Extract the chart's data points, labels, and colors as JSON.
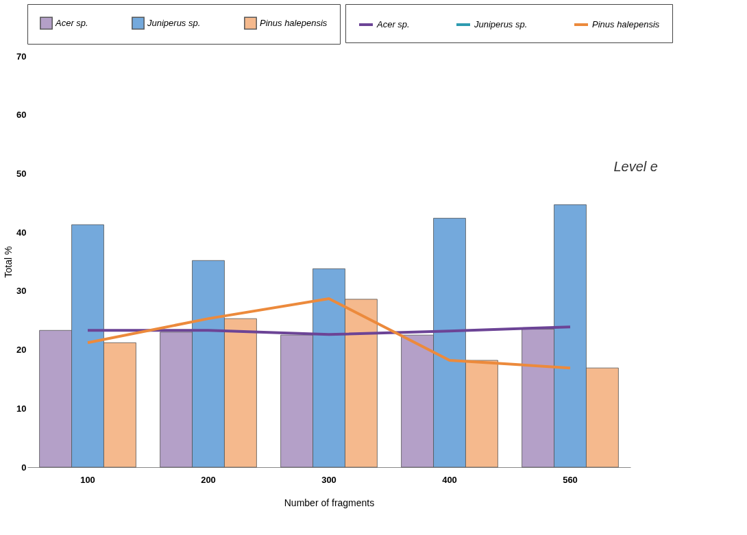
{
  "chart_data": {
    "type": "bar",
    "xlabel": "Number of fragments",
    "ylabel": "Total %",
    "categories": [
      "100",
      "200",
      "300",
      "400",
      "560"
    ],
    "series": [
      {
        "name": "Acer sp.",
        "color": "#b4a0c8",
        "values": [
          23.3,
          23,
          22.5,
          22.5,
          23.5
        ]
      },
      {
        "name": "Juniperus sp.",
        "color": "#74a9dc",
        "values": [
          41.3,
          35.2,
          33.8,
          42.4,
          44.7
        ]
      },
      {
        "name": "Pinus halepensis",
        "color": "#f5b98d",
        "values": [
          21.2,
          25.3,
          28.6,
          18.2,
          16.9
        ]
      },
      {
        "name": "Acer sp.",
        "type": "line",
        "color": "#6c4496",
        "values": [
          23.3,
          23.3,
          22.6,
          23.2,
          23.9
        ]
      },
      {
        "name": "Juniperus sp.",
        "type": "line",
        "color": "#2e9bb0",
        "values": [
          null,
          null,
          null,
          null,
          null
        ]
      },
      {
        "name": "Pinus halepensis",
        "type": "line",
        "color": "#ec8a3c",
        "values": [
          21.2,
          25.3,
          28.7,
          18.2,
          16.9
        ]
      }
    ],
    "ylim": [
      0,
      70
    ],
    "yticks": [
      0,
      10,
      20,
      30,
      40,
      50,
      60,
      70
    ],
    "annotations": [
      "Level e"
    ],
    "legend": "top",
    "grid": false
  }
}
